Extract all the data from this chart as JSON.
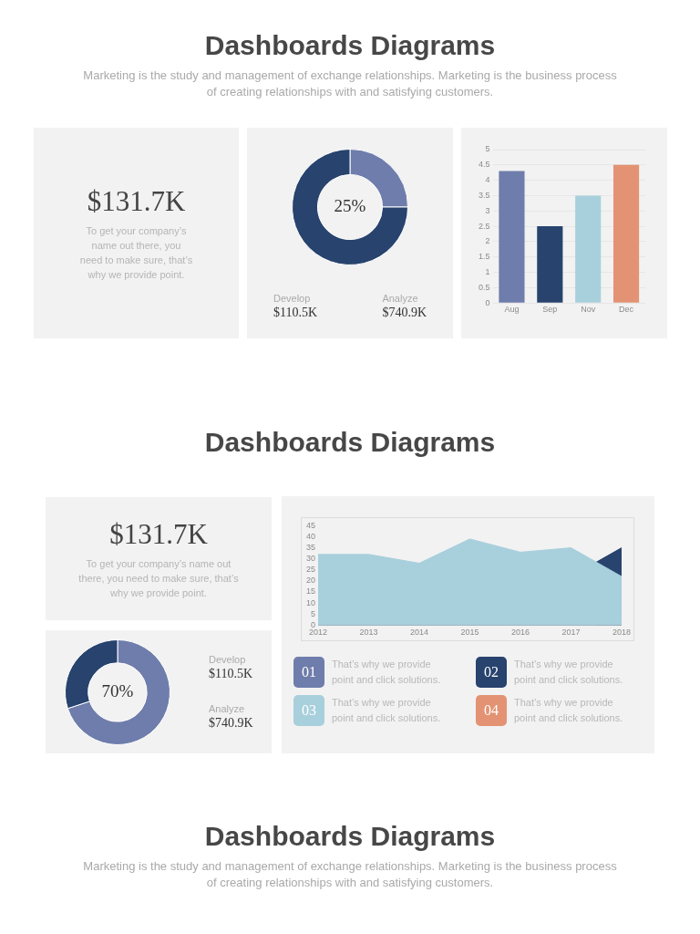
{
  "chart_data": [
    {
      "type": "other",
      "title": "Dashboards Diagrams",
      "subtitle": "Marketing is the study and management of exchange relationships. Marketing is the business process of creating relationships with and satisfying customers."
    },
    {
      "type": "other",
      "title": "$131.7K",
      "annotations": [
        "To get your company’s name out there, you need to make sure, that’s why we provide point."
      ]
    },
    {
      "type": "donut",
      "categories": [
        null,
        null
      ],
      "values": [
        25,
        75
      ],
      "colors": [
        "#6e7dab",
        "#27436e"
      ],
      "annotations": [
        "25%",
        "Develop",
        "$110.5K",
        "Analyze",
        "$740.9K"
      ]
    },
    {
      "type": "bar",
      "categories": [
        "Aug",
        "Sep",
        "Nov",
        "Dec"
      ],
      "values": [
        4.3,
        2.5,
        3.5,
        4.5
      ],
      "colors": [
        "#6e7dab",
        "#27436e",
        "#a8d0dc",
        "#e39373"
      ],
      "ylim": [
        0,
        5
      ],
      "yticks": [
        0,
        0.5,
        1,
        1.5,
        2,
        2.5,
        3,
        3.5,
        4,
        4.5,
        5
      ],
      "grid": "y"
    },
    {
      "type": "other",
      "title": "Dashboards Diagrams"
    },
    {
      "type": "other",
      "title": "$131.7K",
      "annotations": [
        "To get your company’s name out there, you need to make sure, that’s why we provide point."
      ]
    },
    {
      "type": "area",
      "x": [
        2012,
        2013,
        2014,
        2015,
        2016,
        2017,
        2018
      ],
      "xlim": [
        2012,
        2018
      ],
      "xticks": [
        2012,
        2013,
        2014,
        2015,
        2016,
        2017,
        2018
      ],
      "ylim": [
        0,
        45
      ],
      "yticks": [
        0,
        5,
        10,
        15,
        20,
        25,
        30,
        35,
        40,
        45
      ],
      "series": [
        {
          "color": "#a8cfdc",
          "values": [
            32,
            32,
            28,
            39,
            33,
            35,
            22
          ]
        },
        {
          "color": "#27436e",
          "x": [
            2017.5,
            2018
          ],
          "values": [
            28.5,
            35
          ]
        }
      ]
    },
    {
      "type": "other",
      "colors": [
        "#6e7dab",
        "#27436e",
        "#a8d0dc",
        "#e39373"
      ],
      "annotations": [
        "01",
        "That’s why we provide point and click solutions.",
        "02",
        "That’s why we provide point and click solutions.",
        "03",
        "That’s why we provide point and click solutions.",
        "04",
        "That’s why we provide point and click solutions."
      ]
    },
    {
      "type": "donut",
      "categories": [
        null,
        null
      ],
      "values": [
        70,
        30
      ],
      "colors": [
        "#6e7dab",
        "#27436e"
      ],
      "annotations": [
        "70%",
        "Develop",
        "$110.5K",
        "Analyze",
        "$740.9K"
      ]
    },
    {
      "type": "other",
      "title": "Dashboards Diagrams",
      "subtitle": "Marketing is the study and management of exchange relationships. Marketing is the business process of creating relationships with and satisfying customers."
    }
  ]
}
